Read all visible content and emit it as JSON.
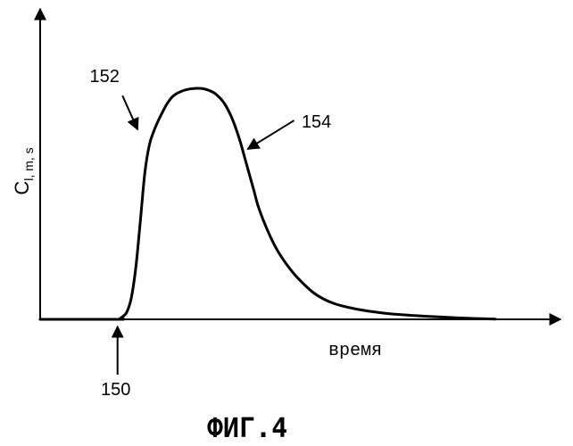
{
  "chart_data": {
    "type": "line",
    "xlabel": "время",
    "ylabel": {
      "main": "C",
      "sub": "l, m, s"
    },
    "x_range": [
      0,
      100
    ],
    "y_range": [
      0,
      100
    ],
    "series": [
      {
        "x": [
          0,
          17,
          17.5,
          18,
          19,
          20,
          21,
          22,
          23,
          24,
          25,
          26,
          27,
          28,
          29,
          30,
          32,
          34,
          36,
          38,
          39,
          40,
          41,
          42,
          43,
          44,
          45,
          46,
          47,
          48,
          50,
          52,
          54,
          56,
          58,
          60,
          62,
          65,
          70,
          75,
          80,
          85,
          90,
          95,
          100
        ],
        "y": [
          0,
          0,
          0.3,
          1,
          3,
          9,
          22,
          42,
          63,
          75,
          81,
          85.5,
          89.5,
          93,
          95.5,
          97,
          98.6,
          99.2,
          99,
          97.5,
          96,
          94,
          91,
          87,
          82,
          76,
          69,
          62,
          55,
          48,
          38,
          30,
          24,
          19,
          15,
          11.5,
          9,
          6.5,
          4.2,
          2.8,
          1.9,
          1.3,
          0.8,
          0.4,
          0.1
        ]
      }
    ],
    "annotations": [
      {
        "label": "150",
        "x": 17,
        "y": 0
      },
      {
        "label": "152",
        "x": 22,
        "y": 80
      },
      {
        "label": "154",
        "x": 45,
        "y": 72
      }
    ],
    "caption": "ФИГ.4"
  }
}
